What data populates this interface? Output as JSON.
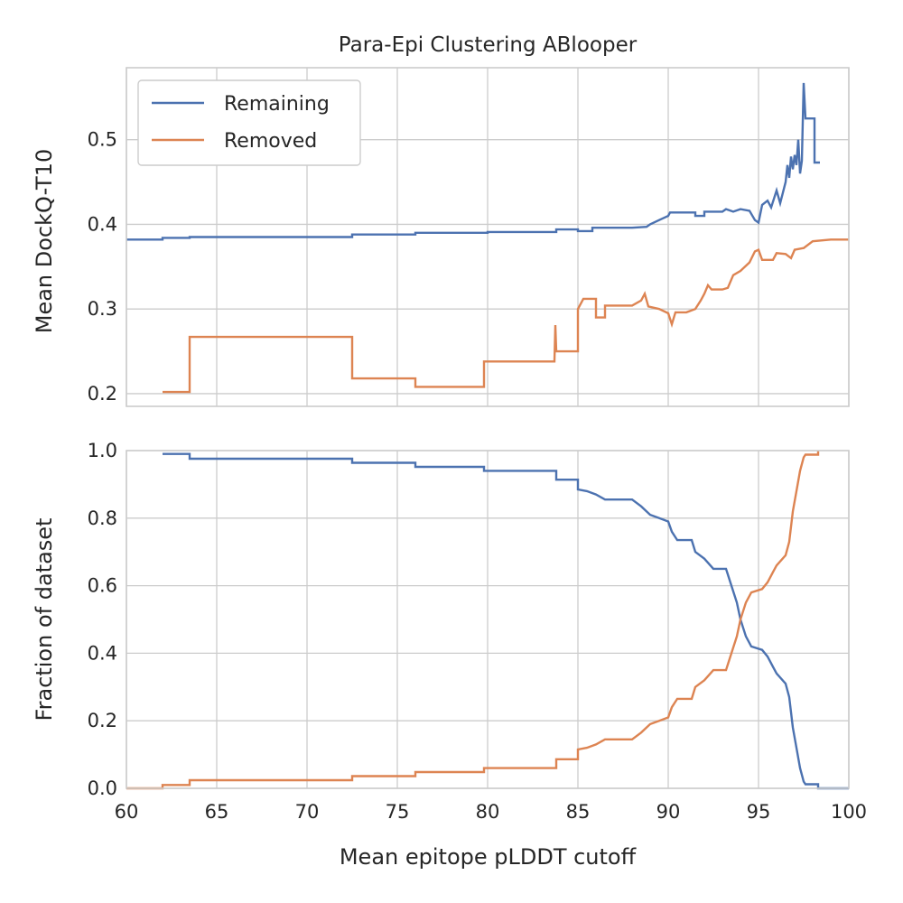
{
  "chart_data": [
    {
      "type": "line",
      "title": "Para-Epi Clustering ABlooper",
      "xlabel": "",
      "ylabel": "Mean DockQ-T10",
      "xlim": [
        60,
        100
      ],
      "ylim": [
        0.185,
        0.585
      ],
      "xticks": [
        60,
        65,
        70,
        75,
        80,
        85,
        90,
        95,
        100
      ],
      "yticks": [
        0.2,
        0.3,
        0.4,
        0.5
      ],
      "ytick_labels": [
        "0.2",
        "0.3",
        "0.4",
        "0.5"
      ],
      "grid": true,
      "legend": {
        "position": "upper-left",
        "entries": [
          "Remaining",
          "Removed"
        ]
      },
      "series": [
        {
          "name": "Remaining",
          "color": "#4c72b0",
          "points": [
            [
              60,
              0.382
            ],
            [
              62,
              0.382
            ],
            [
              62,
              0.384
            ],
            [
              63.5,
              0.384
            ],
            [
              63.5,
              0.385
            ],
            [
              72.5,
              0.385
            ],
            [
              72.5,
              0.388
            ],
            [
              76,
              0.388
            ],
            [
              76,
              0.39
            ],
            [
              80,
              0.39
            ],
            [
              80,
              0.391
            ],
            [
              83.8,
              0.391
            ],
            [
              83.8,
              0.394
            ],
            [
              85,
              0.394
            ],
            [
              85,
              0.392
            ],
            [
              85.8,
              0.392
            ],
            [
              85.8,
              0.396
            ],
            [
              88,
              0.396
            ],
            [
              88.8,
              0.397
            ],
            [
              89,
              0.4
            ],
            [
              89.5,
              0.405
            ],
            [
              90,
              0.41
            ],
            [
              90.1,
              0.414
            ],
            [
              91.5,
              0.414
            ],
            [
              91.5,
              0.41
            ],
            [
              92,
              0.41
            ],
            [
              92,
              0.415
            ],
            [
              93,
              0.415
            ],
            [
              93.2,
              0.418
            ],
            [
              93.6,
              0.415
            ],
            [
              94,
              0.418
            ],
            [
              94.5,
              0.416
            ],
            [
              94.8,
              0.405
            ],
            [
              95,
              0.402
            ],
            [
              95.2,
              0.423
            ],
            [
              95.5,
              0.428
            ],
            [
              95.7,
              0.42
            ],
            [
              96,
              0.44
            ],
            [
              96.2,
              0.425
            ],
            [
              96.5,
              0.45
            ],
            [
              96.6,
              0.47
            ],
            [
              96.7,
              0.455
            ],
            [
              96.8,
              0.48
            ],
            [
              96.9,
              0.465
            ],
            [
              97,
              0.482
            ],
            [
              97.1,
              0.47
            ],
            [
              97.2,
              0.5
            ],
            [
              97.3,
              0.46
            ],
            [
              97.4,
              0.475
            ],
            [
              97.5,
              0.567
            ],
            [
              97.6,
              0.525
            ],
            [
              98.1,
              0.525
            ],
            [
              98.1,
              0.473
            ],
            [
              98.4,
              0.473
            ]
          ]
        },
        {
          "name": "Removed",
          "color": "#dd8452",
          "points": [
            [
              62,
              0.202
            ],
            [
              63.5,
              0.202
            ],
            [
              63.5,
              0.267
            ],
            [
              72.5,
              0.267
            ],
            [
              72.5,
              0.218
            ],
            [
              76,
              0.218
            ],
            [
              76,
              0.208
            ],
            [
              79.8,
              0.208
            ],
            [
              79.8,
              0.238
            ],
            [
              83.7,
              0.238
            ],
            [
              83.75,
              0.281
            ],
            [
              83.8,
              0.25
            ],
            [
              85,
              0.25
            ],
            [
              85,
              0.3
            ],
            [
              85.3,
              0.312
            ],
            [
              86,
              0.312
            ],
            [
              86,
              0.29
            ],
            [
              86.5,
              0.29
            ],
            [
              86.5,
              0.304
            ],
            [
              88,
              0.304
            ],
            [
              88.5,
              0.31
            ],
            [
              88.7,
              0.318
            ],
            [
              88.9,
              0.303
            ],
            [
              89.5,
              0.3
            ],
            [
              90,
              0.295
            ],
            [
              90.2,
              0.282
            ],
            [
              90.4,
              0.296
            ],
            [
              91,
              0.296
            ],
            [
              91.5,
              0.3
            ],
            [
              91.8,
              0.31
            ],
            [
              92,
              0.318
            ],
            [
              92.2,
              0.328
            ],
            [
              92.4,
              0.323
            ],
            [
              93,
              0.323
            ],
            [
              93.3,
              0.325
            ],
            [
              93.6,
              0.34
            ],
            [
              94,
              0.345
            ],
            [
              94.5,
              0.355
            ],
            [
              94.8,
              0.368
            ],
            [
              95,
              0.37
            ],
            [
              95.2,
              0.358
            ],
            [
              95.8,
              0.358
            ],
            [
              96,
              0.366
            ],
            [
              96.5,
              0.365
            ],
            [
              96.8,
              0.36
            ],
            [
              97,
              0.37
            ],
            [
              97.5,
              0.372
            ],
            [
              98,
              0.38
            ],
            [
              99,
              0.382
            ],
            [
              100,
              0.382
            ]
          ]
        }
      ]
    },
    {
      "type": "line",
      "title": "",
      "xlabel": "Mean epitope pLDDT cutoff",
      "ylabel": "Fraction of dataset",
      "xlim": [
        60,
        100
      ],
      "ylim": [
        0.0,
        1.0
      ],
      "xticks": [
        60,
        65,
        70,
        75,
        80,
        85,
        90,
        95,
        100
      ],
      "yticks": [
        0.0,
        0.2,
        0.4,
        0.6,
        0.8,
        1.0
      ],
      "xtick_labels": [
        "60",
        "65",
        "70",
        "75",
        "80",
        "85",
        "90",
        "95",
        "100"
      ],
      "ytick_labels": [
        "0.0",
        "0.2",
        "0.4",
        "0.6",
        "0.8",
        "1.0"
      ],
      "grid": true,
      "series": [
        {
          "name": "Remaining",
          "color": "#4c72b0",
          "points": [
            [
              62,
              0.99
            ],
            [
              63.5,
              0.99
            ],
            [
              63.5,
              0.976
            ],
            [
              72.5,
              0.976
            ],
            [
              72.5,
              0.964
            ],
            [
              76,
              0.964
            ],
            [
              76,
              0.952
            ],
            [
              79.8,
              0.952
            ],
            [
              79.8,
              0.94
            ],
            [
              83.8,
              0.94
            ],
            [
              83.8,
              0.914
            ],
            [
              85,
              0.914
            ],
            [
              85,
              0.885
            ],
            [
              85.5,
              0.88
            ],
            [
              86,
              0.87
            ],
            [
              86.5,
              0.855
            ],
            [
              88,
              0.855
            ],
            [
              88.5,
              0.835
            ],
            [
              89,
              0.81
            ],
            [
              89.5,
              0.8
            ],
            [
              90,
              0.79
            ],
            [
              90.2,
              0.76
            ],
            [
              90.5,
              0.735
            ],
            [
              91.3,
              0.735
            ],
            [
              91.5,
              0.7
            ],
            [
              92,
              0.68
            ],
            [
              92.5,
              0.65
            ],
            [
              93.2,
              0.65
            ],
            [
              93.5,
              0.6
            ],
            [
              93.8,
              0.55
            ],
            [
              94,
              0.5
            ],
            [
              94.3,
              0.45
            ],
            [
              94.6,
              0.42
            ],
            [
              95.2,
              0.41
            ],
            [
              95.5,
              0.39
            ],
            [
              95.8,
              0.36
            ],
            [
              96,
              0.34
            ],
            [
              96.5,
              0.31
            ],
            [
              96.7,
              0.27
            ],
            [
              96.9,
              0.18
            ],
            [
              97.1,
              0.12
            ],
            [
              97.3,
              0.06
            ],
            [
              97.5,
              0.02
            ],
            [
              97.6,
              0.012
            ],
            [
              98.3,
              0.012
            ],
            [
              98.3,
              0.0
            ],
            [
              100,
              0.0
            ]
          ]
        },
        {
          "name": "Removed",
          "color": "#dd8452",
          "points": [
            [
              60,
              0.0
            ],
            [
              62,
              0.0
            ],
            [
              62,
              0.01
            ],
            [
              63.5,
              0.01
            ],
            [
              63.5,
              0.024
            ],
            [
              72.5,
              0.024
            ],
            [
              72.5,
              0.036
            ],
            [
              76,
              0.036
            ],
            [
              76,
              0.048
            ],
            [
              79.8,
              0.048
            ],
            [
              79.8,
              0.06
            ],
            [
              83.8,
              0.06
            ],
            [
              83.8,
              0.086
            ],
            [
              85,
              0.086
            ],
            [
              85,
              0.115
            ],
            [
              85.5,
              0.12
            ],
            [
              86,
              0.13
            ],
            [
              86.5,
              0.145
            ],
            [
              88,
              0.145
            ],
            [
              88.5,
              0.165
            ],
            [
              89,
              0.19
            ],
            [
              89.5,
              0.2
            ],
            [
              90,
              0.21
            ],
            [
              90.2,
              0.24
            ],
            [
              90.5,
              0.265
            ],
            [
              91.3,
              0.265
            ],
            [
              91.5,
              0.3
            ],
            [
              92,
              0.32
            ],
            [
              92.5,
              0.35
            ],
            [
              93.2,
              0.35
            ],
            [
              93.5,
              0.4
            ],
            [
              93.8,
              0.45
            ],
            [
              94,
              0.5
            ],
            [
              94.3,
              0.55
            ],
            [
              94.6,
              0.58
            ],
            [
              95.2,
              0.59
            ],
            [
              95.5,
              0.61
            ],
            [
              95.8,
              0.64
            ],
            [
              96,
              0.66
            ],
            [
              96.5,
              0.69
            ],
            [
              96.7,
              0.73
            ],
            [
              96.9,
              0.82
            ],
            [
              97.1,
              0.88
            ],
            [
              97.3,
              0.94
            ],
            [
              97.5,
              0.98
            ],
            [
              97.6,
              0.988
            ],
            [
              98.3,
              0.988
            ],
            [
              98.3,
              1.0
            ]
          ]
        }
      ]
    }
  ]
}
